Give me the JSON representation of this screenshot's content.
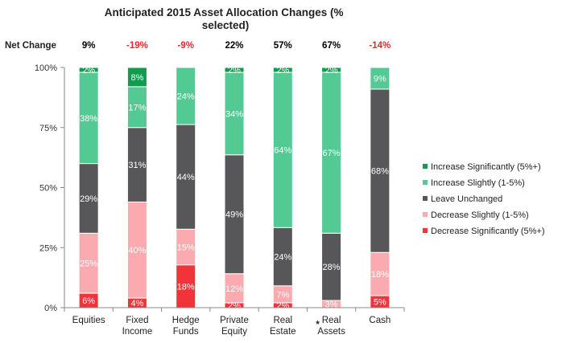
{
  "chart_data": {
    "type": "bar",
    "stacked": true,
    "percent_stacked": true,
    "title": "Anticipated 2015 Asset Allocation Changes (% selected)",
    "net_change_label": "Net Change",
    "categories": [
      [
        "Equities"
      ],
      [
        "Fixed",
        "Income"
      ],
      [
        "Hedge",
        "Funds"
      ],
      [
        "Private",
        "Equity"
      ],
      [
        "Real",
        "Estate"
      ],
      [
        "Real",
        "Assets"
      ],
      [
        "Cash"
      ]
    ],
    "category_marker": [
      "",
      "",
      "",
      "",
      "",
      "★",
      ""
    ],
    "net_change": [
      "9%",
      "-19%",
      "-9%",
      "22%",
      "57%",
      "67%",
      "-14%"
    ],
    "net_change_colors": [
      "#000000",
      "#e8262e",
      "#e8262e",
      "#000000",
      "#000000",
      "#000000",
      "#e8262e"
    ],
    "ylim": [
      0,
      100
    ],
    "yticks": [
      0,
      25,
      50,
      75,
      100
    ],
    "ytick_labels": [
      "0%",
      "25%",
      "50%",
      "75%",
      "100%"
    ],
    "grid": false,
    "legend_position": "right",
    "series": [
      {
        "name": "Decrease Significantly (5%+)",
        "color": "#f1333a",
        "values": [
          6,
          4,
          18,
          2,
          2,
          0,
          5
        ],
        "labels": [
          "6%",
          "4%",
          "18%",
          "2%",
          "2%",
          "",
          "5%"
        ]
      },
      {
        "name": "Decrease Slightly (1-5%)",
        "color": "#fbaaaf",
        "values": [
          25,
          40,
          15,
          12,
          7,
          3,
          18
        ],
        "labels": [
          "25%",
          "40%",
          "15%",
          "12%",
          "7%",
          "3%",
          "18%"
        ]
      },
      {
        "name": "Leave Unchanged",
        "color": "#575759",
        "values": [
          29,
          31,
          44,
          49,
          24,
          28,
          68
        ],
        "labels": [
          "29%",
          "31%",
          "44%",
          "49%",
          "24%",
          "28%",
          "68%"
        ]
      },
      {
        "name": "Increase Slightly (1-5%)",
        "color": "#53c993",
        "values": [
          38,
          17,
          24,
          34,
          64,
          67,
          9
        ],
        "labels": [
          "38%",
          "17%",
          "24%",
          "34%",
          "64%",
          "67%",
          "9%"
        ]
      },
      {
        "name": "Increase Significantly (5%+)",
        "color": "#0f9c4f",
        "values": [
          2,
          8,
          0,
          2,
          2,
          2,
          0
        ],
        "labels": [
          "2%",
          "8%",
          "",
          "2%",
          "2%",
          "2%",
          ""
        ]
      }
    ]
  }
}
